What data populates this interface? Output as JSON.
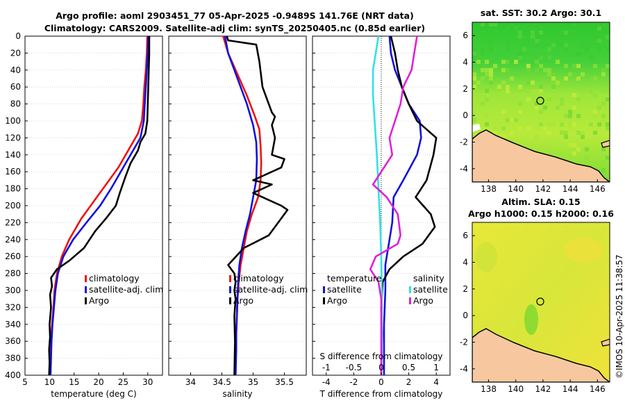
{
  "header": {
    "title_line1": "Argo profile: aoml 2903451_77 05-Apr-2025 -0.9489S 141.76E (NRT data)",
    "title_line2": "Climatology: CARS2009. Satellite-adj clim: synTS_20250405.nc (0.85d earlier)"
  },
  "colors": {
    "climatology": "#ee1111",
    "satellite": "#1111dd",
    "argo": "#000000",
    "sal_satellite": "#33e0e8",
    "sal_argo": "#e020d8",
    "land": "#f7c8a0",
    "grid": "#c0c0c0"
  },
  "depth_axis": {
    "range": [
      0,
      400
    ],
    "ticks": [
      0,
      20,
      40,
      60,
      80,
      100,
      120,
      140,
      160,
      180,
      200,
      220,
      240,
      260,
      280,
      300,
      320,
      340,
      360,
      380,
      400
    ]
  },
  "chart_data": [
    {
      "id": "temperature",
      "type": "line",
      "xlabel": "temperature (deg C)",
      "ylabel": "depth",
      "xlim": [
        5,
        33
      ],
      "xticks": [
        5,
        10,
        15,
        20,
        25,
        30
      ],
      "legend": [
        "climatology",
        "satellite-adj. clim",
        "Argo"
      ],
      "series": [
        {
          "name": "climatology",
          "points": [
            [
              29.9,
              0
            ],
            [
              29.8,
              20
            ],
            [
              29.6,
              40
            ],
            [
              29.3,
              60
            ],
            [
              29.1,
              80
            ],
            [
              28.8,
              100
            ],
            [
              28.0,
              115
            ],
            [
              26.0,
              135
            ],
            [
              24.0,
              155
            ],
            [
              21.5,
              175
            ],
            [
              19.0,
              195
            ],
            [
              16.5,
              215
            ],
            [
              14.0,
              240
            ],
            [
              12.5,
              260
            ],
            [
              11.5,
              280
            ],
            [
              11.0,
              300
            ],
            [
              10.8,
              320
            ],
            [
              10.5,
              340
            ],
            [
              10.3,
              360
            ],
            [
              10.2,
              380
            ],
            [
              10.1,
              400
            ]
          ]
        },
        {
          "name": "satellite-adj. clim",
          "points": [
            [
              30.1,
              0
            ],
            [
              30.0,
              20
            ],
            [
              29.8,
              40
            ],
            [
              29.6,
              60
            ],
            [
              29.4,
              80
            ],
            [
              29.2,
              100
            ],
            [
              28.5,
              120
            ],
            [
              26.5,
              140
            ],
            [
              24.5,
              160
            ],
            [
              22.5,
              180
            ],
            [
              20.3,
              200
            ],
            [
              17.5,
              220
            ],
            [
              14.8,
              240
            ],
            [
              12.8,
              260
            ],
            [
              11.7,
              280
            ],
            [
              11.2,
              300
            ],
            [
              10.9,
              320
            ],
            [
              10.6,
              340
            ],
            [
              10.4,
              360
            ],
            [
              10.3,
              380
            ],
            [
              10.2,
              400
            ]
          ]
        },
        {
          "name": "Argo",
          "points": [
            [
              30.3,
              0
            ],
            [
              30.3,
              20
            ],
            [
              30.2,
              40
            ],
            [
              30.1,
              60
            ],
            [
              30.0,
              80
            ],
            [
              29.9,
              100
            ],
            [
              29.5,
              115
            ],
            [
              28.5,
              125
            ],
            [
              28.0,
              135
            ],
            [
              26.5,
              150
            ],
            [
              25.5,
              165
            ],
            [
              24.3,
              185
            ],
            [
              23.5,
              200
            ],
            [
              21.5,
              215
            ],
            [
              19.3,
              230
            ],
            [
              17.0,
              250
            ],
            [
              14.0,
              265
            ],
            [
              11.5,
              275
            ],
            [
              10.3,
              285
            ],
            [
              10.5,
              295
            ],
            [
              10.1,
              305
            ],
            [
              10.3,
              320
            ],
            [
              10.0,
              340
            ],
            [
              10.1,
              355
            ],
            [
              9.9,
              370
            ],
            [
              10.0,
              385
            ],
            [
              9.9,
              400
            ]
          ]
        }
      ]
    },
    {
      "id": "salinity",
      "type": "line",
      "xlabel": "salinity",
      "ylabel": "depth",
      "xlim": [
        33.65,
        35.85
      ],
      "xticks": [
        34,
        34.5,
        35,
        35.5
      ],
      "legend": [
        "climatology",
        "satellite-adj. clim",
        "Argo"
      ],
      "series": [
        {
          "name": "climatology",
          "points": [
            [
              34.52,
              0
            ],
            [
              34.6,
              20
            ],
            [
              34.75,
              45
            ],
            [
              34.9,
              70
            ],
            [
              35.03,
              95
            ],
            [
              35.1,
              110
            ],
            [
              35.12,
              130
            ],
            [
              35.13,
              150
            ],
            [
              35.12,
              170
            ],
            [
              35.08,
              190
            ],
            [
              34.98,
              210
            ],
            [
              34.9,
              230
            ],
            [
              34.85,
              250
            ],
            [
              34.8,
              270
            ],
            [
              34.77,
              290
            ],
            [
              34.75,
              310
            ],
            [
              34.74,
              330
            ],
            [
              34.73,
              350
            ],
            [
              34.72,
              370
            ],
            [
              34.72,
              400
            ]
          ]
        },
        {
          "name": "satellite-adj. clim",
          "points": [
            [
              34.55,
              0
            ],
            [
              34.6,
              20
            ],
            [
              34.7,
              40
            ],
            [
              34.8,
              60
            ],
            [
              34.9,
              80
            ],
            [
              35.0,
              105
            ],
            [
              35.05,
              125
            ],
            [
              35.06,
              145
            ],
            [
              35.05,
              170
            ],
            [
              35.0,
              190
            ],
            [
              34.95,
              210
            ],
            [
              34.88,
              230
            ],
            [
              34.82,
              250
            ],
            [
              34.78,
              270
            ],
            [
              34.76,
              290
            ],
            [
              34.75,
              310
            ],
            [
              34.74,
              330
            ],
            [
              34.73,
              350
            ],
            [
              34.73,
              370
            ],
            [
              34.72,
              400
            ]
          ]
        },
        {
          "name": "Argo",
          "points": [
            [
              34.58,
              0
            ],
            [
              34.6,
              5
            ],
            [
              35.05,
              10
            ],
            [
              35.1,
              30
            ],
            [
              35.15,
              60
            ],
            [
              35.25,
              80
            ],
            [
              35.3,
              90
            ],
            [
              35.35,
              95
            ],
            [
              35.3,
              105
            ],
            [
              35.35,
              120
            ],
            [
              35.3,
              140
            ],
            [
              35.5,
              145
            ],
            [
              35.45,
              155
            ],
            [
              35.0,
              170
            ],
            [
              35.3,
              175
            ],
            [
              35.0,
              185
            ],
            [
              35.45,
              200
            ],
            [
              35.55,
              205
            ],
            [
              35.35,
              225
            ],
            [
              35.25,
              235
            ],
            [
              34.85,
              250
            ],
            [
              34.7,
              262
            ],
            [
              34.6,
              270
            ],
            [
              34.7,
              280
            ],
            [
              34.72,
              290
            ],
            [
              34.7,
              300
            ],
            [
              34.72,
              310
            ],
            [
              34.7,
              330
            ],
            [
              34.71,
              360
            ],
            [
              34.7,
              400
            ]
          ]
        }
      ]
    },
    {
      "id": "difference",
      "type": "line",
      "xlabel": "T difference from climatology",
      "xlabel_top": "S difference from climatology",
      "ylabel": "depth",
      "xlim": [
        -5,
        5
      ],
      "xticks": [
        -4,
        -2,
        0,
        2,
        4
      ],
      "top_ticks": [
        "-1",
        "-0.5",
        "0",
        "0.5",
        "1"
      ],
      "legend_left_title": "temperature",
      "legend_right_title": "salinity",
      "legend_left": [
        "satellite",
        "Argo"
      ],
      "legend_right": [
        "satellite",
        "Argo"
      ],
      "series": [
        {
          "name": "temperature satellite",
          "points": [
            [
              0.6,
              0
            ],
            [
              0.7,
              20
            ],
            [
              1.0,
              40
            ],
            [
              1.5,
              60
            ],
            [
              2.0,
              80
            ],
            [
              2.8,
              100
            ],
            [
              2.9,
              120
            ],
            [
              2.6,
              140
            ],
            [
              1.6,
              170
            ],
            [
              0.9,
              190
            ],
            [
              0.8,
              220
            ],
            [
              0.6,
              240
            ],
            [
              0.3,
              270
            ],
            [
              0.3,
              300
            ],
            [
              0.2,
              340
            ],
            [
              0.2,
              400
            ]
          ]
        },
        {
          "name": "temperature Argo",
          "points": [
            [
              0.7,
              0
            ],
            [
              1.0,
              20
            ],
            [
              1.2,
              40
            ],
            [
              1.5,
              60
            ],
            [
              2.0,
              80
            ],
            [
              2.6,
              100
            ],
            [
              3.3,
              110
            ],
            [
              4.0,
              120
            ],
            [
              3.8,
              140
            ],
            [
              3.3,
              170
            ],
            [
              2.5,
              190
            ],
            [
              3.6,
              210
            ],
            [
              3.9,
              225
            ],
            [
              3.0,
              245
            ],
            [
              1.6,
              260
            ],
            [
              0.6,
              275
            ],
            [
              0.1,
              290
            ],
            [
              0.0,
              320
            ],
            [
              0.05,
              350
            ],
            [
              0.0,
              400
            ]
          ]
        },
        {
          "name": "salinity satellite",
          "points": [
            [
              -0.05,
              0
            ],
            [
              -0.1,
              20
            ],
            [
              -0.15,
              40
            ],
            [
              -0.15,
              70
            ],
            [
              -0.12,
              100
            ],
            [
              -0.08,
              140
            ],
            [
              -0.05,
              180
            ],
            [
              -0.02,
              220
            ],
            [
              0.0,
              260
            ],
            [
              0.01,
              300
            ],
            [
              0.01,
              350
            ],
            [
              0.0,
              400
            ]
          ]
        },
        {
          "name": "salinity Argo",
          "points": [
            [
              0.65,
              0
            ],
            [
              0.6,
              20
            ],
            [
              0.55,
              40
            ],
            [
              0.4,
              60
            ],
            [
              0.35,
              80
            ],
            [
              0.25,
              100
            ],
            [
              0.15,
              120
            ],
            [
              0.2,
              140
            ],
            [
              0.0,
              160
            ],
            [
              -0.15,
              175
            ],
            [
              0.1,
              190
            ],
            [
              0.3,
              210
            ],
            [
              0.35,
              235
            ],
            [
              0.3,
              245
            ],
            [
              -0.1,
              260
            ],
            [
              -0.2,
              275
            ],
            [
              -0.05,
              290
            ],
            [
              0.0,
              310
            ],
            [
              0.0,
              330
            ],
            [
              0.0,
              400
            ]
          ]
        }
      ]
    },
    {
      "id": "sst-map",
      "type": "heatmap",
      "title": "sat. SST: 30.2 Argo: 30.1",
      "xticks": [
        138,
        140,
        142,
        144,
        146
      ],
      "yticks": [
        6,
        4,
        2,
        0,
        -2,
        -4
      ],
      "xlim": [
        136.8,
        146.9
      ],
      "ylim": [
        -5,
        7
      ],
      "marker": {
        "lon": 141.76,
        "lat": 0.95
      }
    },
    {
      "id": "sla-map",
      "type": "heatmap",
      "title_line1": "Altim. SLA: 0.15",
      "title_line2": "Argo h1000: 0.15 h2000: 0.16",
      "xticks": [
        138,
        140,
        142,
        144,
        146
      ],
      "yticks": [
        6,
        4,
        2,
        0,
        -2,
        -4
      ],
      "xlim": [
        136.8,
        146.9
      ],
      "ylim": [
        -5,
        7
      ],
      "marker": {
        "lon": 141.76,
        "lat": 0.95
      }
    }
  ],
  "credit": "©IMOS 10-Apr-2025 11:38:57"
}
